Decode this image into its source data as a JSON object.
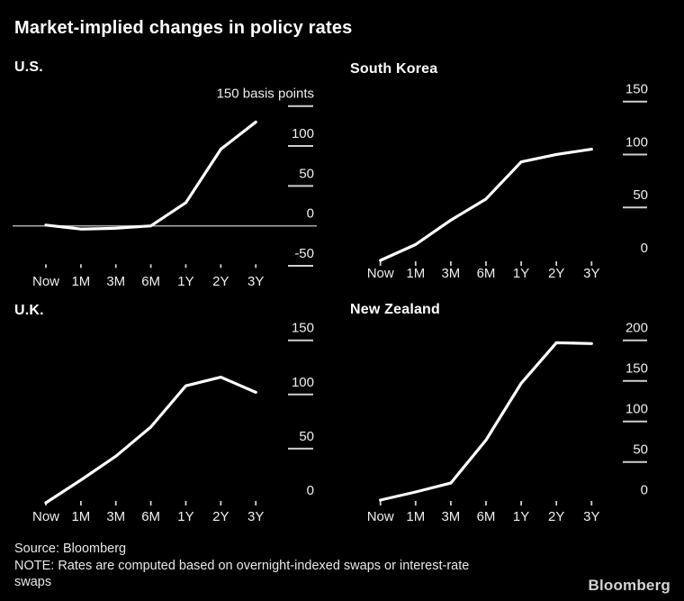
{
  "title": "Market-implied changes in policy rates",
  "footer": {
    "source": "Source: Bloomberg",
    "note_lines": [
      "NOTE: Rates are computed based on overnight-indexed swaps or interest-rate",
      "swaps"
    ],
    "logo": "Bloomberg"
  },
  "colors": {
    "background": "#000000",
    "title_text": "#ffffff",
    "axis_text": "#eeeeee",
    "tick_line": "#cfcfcf",
    "zero_line": "#a6a6a6",
    "series_line": "#ffffff"
  },
  "chart_data": [
    {
      "type": "line",
      "title": "U.S.",
      "unit_label": "150 basis points",
      "categories": [
        "Now",
        "1M",
        "3M",
        "6M",
        "1Y",
        "2Y",
        "3Y"
      ],
      "values": [
        1,
        -4,
        -3,
        0,
        29,
        96,
        130
      ],
      "y_ticks": [
        150,
        100,
        50,
        0,
        -50
      ],
      "y_tick_labels": [
        "150 basis points",
        "100",
        "50",
        "0",
        "-50"
      ],
      "ylim": [
        -50,
        150
      ],
      "zero_axis_line": true,
      "no_line_ticks": [],
      "ylabel": "basis points",
      "legend": "none",
      "grid": "right-ticks"
    },
    {
      "type": "line",
      "title": "South Korea",
      "categories": [
        "Now",
        "1M",
        "3M",
        "6M",
        "1Y",
        "2Y",
        "3Y"
      ],
      "values": [
        0,
        15,
        38,
        58,
        93,
        100,
        105
      ],
      "y_ticks": [
        150,
        100,
        50,
        0
      ],
      "y_tick_labels": [
        "150",
        "100",
        "50",
        "0"
      ],
      "ylim": [
        0,
        150
      ],
      "zero_axis_line": false,
      "no_line_ticks": [
        0
      ],
      "ylabel": "basis points",
      "legend": "none",
      "grid": "right-ticks"
    },
    {
      "type": "line",
      "title": "U.K.",
      "categories": [
        "Now",
        "1M",
        "3M",
        "6M",
        "1Y",
        "2Y",
        "3Y"
      ],
      "values": [
        0,
        21,
        43,
        70,
        108,
        116,
        102
      ],
      "y_ticks": [
        150,
        100,
        50,
        0
      ],
      "y_tick_labels": [
        "150",
        "100",
        "50",
        "0"
      ],
      "ylim": [
        0,
        150
      ],
      "zero_axis_line": false,
      "no_line_ticks": [
        0
      ],
      "ylabel": "basis points",
      "legend": "none",
      "grid": "right-ticks"
    },
    {
      "type": "line",
      "title": "New Zealand",
      "categories": [
        "Now",
        "1M",
        "3M",
        "6M",
        "1Y",
        "2Y",
        "3Y"
      ],
      "values": [
        3,
        13,
        24,
        77,
        147,
        197,
        196
      ],
      "y_ticks": [
        200,
        150,
        100,
        50,
        0
      ],
      "y_tick_labels": [
        "200",
        "150",
        "100",
        "50",
        "0"
      ],
      "ylim": [
        0,
        200
      ],
      "zero_axis_line": false,
      "no_line_ticks": [
        0
      ],
      "ylabel": "basis points",
      "legend": "none",
      "grid": "right-ticks"
    }
  ]
}
